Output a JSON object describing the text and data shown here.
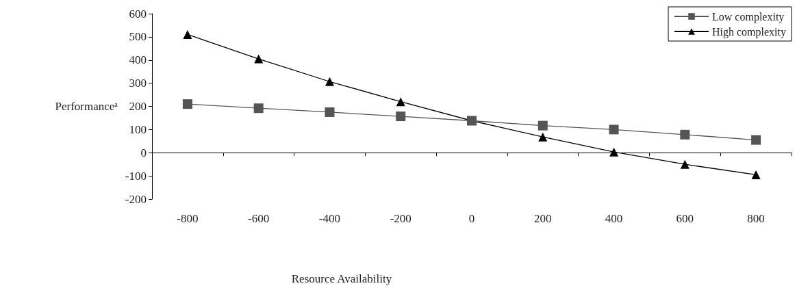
{
  "chart_data": {
    "type": "line",
    "xlabel": "Resource Availability",
    "ylabel": "Performanceᵃ",
    "categories": [
      "-800",
      "-600",
      "-400",
      "-200",
      "0",
      "200",
      "400",
      "600",
      "800"
    ],
    "ylim": [
      -200,
      600
    ],
    "yticks": [
      -200,
      -100,
      0,
      100,
      200,
      300,
      400,
      500,
      600
    ],
    "legend": "top right",
    "line_style": "solid",
    "series": [
      {
        "name": "Low complexity",
        "color": "#555555",
        "marker": "square",
        "values": [
          210,
          192,
          175,
          157,
          138,
          117,
          100,
          78,
          55
        ]
      },
      {
        "name": "High complexity",
        "color": "#000000",
        "marker": "triangle",
        "values": [
          510,
          405,
          307,
          220,
          138,
          68,
          3,
          -50,
          -95
        ]
      }
    ]
  }
}
